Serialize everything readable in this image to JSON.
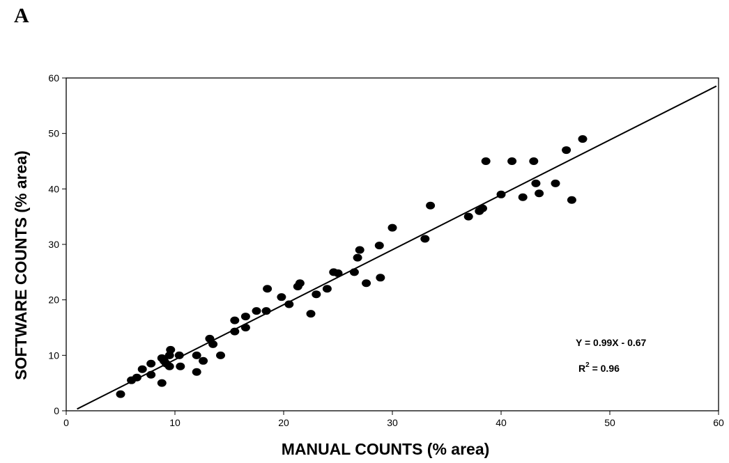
{
  "panel_label": "A",
  "chart_data": {
    "type": "scatter",
    "xlabel": "MANUAL COUNTS (% area)",
    "ylabel": "SOFTWARE COUNTS (% area)",
    "xlim": [
      0,
      60
    ],
    "ylim": [
      0,
      60
    ],
    "xticks": [
      "0",
      "10",
      "20",
      "30",
      "40",
      "50",
      "60"
    ],
    "yticks": [
      "0",
      "10",
      "20",
      "30",
      "40",
      "50",
      "60"
    ],
    "grid": false,
    "marker_color": "#000000",
    "points": [
      [
        5,
        3
      ],
      [
        6,
        5.5
      ],
      [
        6.5,
        6
      ],
      [
        7,
        7.5
      ],
      [
        7.8,
        6.5
      ],
      [
        7.8,
        8.5
      ],
      [
        8.8,
        5
      ],
      [
        8.8,
        9.5
      ],
      [
        9,
        9
      ],
      [
        9.2,
        8.5
      ],
      [
        9.5,
        8
      ],
      [
        9.5,
        10
      ],
      [
        9.6,
        11
      ],
      [
        10.4,
        10
      ],
      [
        10.5,
        8
      ],
      [
        12,
        7
      ],
      [
        12,
        10
      ],
      [
        12.6,
        9
      ],
      [
        13.2,
        13
      ],
      [
        13.5,
        12
      ],
      [
        14.2,
        10
      ],
      [
        15.5,
        14.3
      ],
      [
        15.5,
        16.3
      ],
      [
        16.5,
        15
      ],
      [
        16.5,
        17
      ],
      [
        17.5,
        18
      ],
      [
        18.4,
        18
      ],
      [
        18.5,
        22
      ],
      [
        19.8,
        20.5
      ],
      [
        20.5,
        19.2
      ],
      [
        21.3,
        22.4
      ],
      [
        21.5,
        23
      ],
      [
        22.5,
        17.5
      ],
      [
        23,
        21
      ],
      [
        24,
        22
      ],
      [
        24.6,
        25
      ],
      [
        25,
        24.8
      ],
      [
        26.5,
        25
      ],
      [
        26.8,
        27.6
      ],
      [
        27,
        29
      ],
      [
        27.6,
        23
      ],
      [
        28.8,
        29.8
      ],
      [
        28.9,
        24
      ],
      [
        30,
        33
      ],
      [
        33,
        31
      ],
      [
        33.5,
        37
      ],
      [
        37,
        35
      ],
      [
        38,
        36
      ],
      [
        38.3,
        36.5
      ],
      [
        38.6,
        45
      ],
      [
        40,
        39
      ],
      [
        41,
        45
      ],
      [
        42,
        38.5
      ],
      [
        43,
        45
      ],
      [
        43.2,
        41
      ],
      [
        43.5,
        39.2
      ],
      [
        45,
        41
      ],
      [
        46,
        47
      ],
      [
        46.5,
        38
      ],
      [
        47.5,
        49
      ]
    ],
    "fit_line": {
      "slope": 0.99,
      "intercept": -0.67,
      "x_start": 1,
      "x_end": 59.8
    },
    "annotations": {
      "equation": "Y = 0.99X - 0.67",
      "r2_base": "R",
      "r2_sup": "2",
      "r2_value": " = 0.96"
    }
  }
}
